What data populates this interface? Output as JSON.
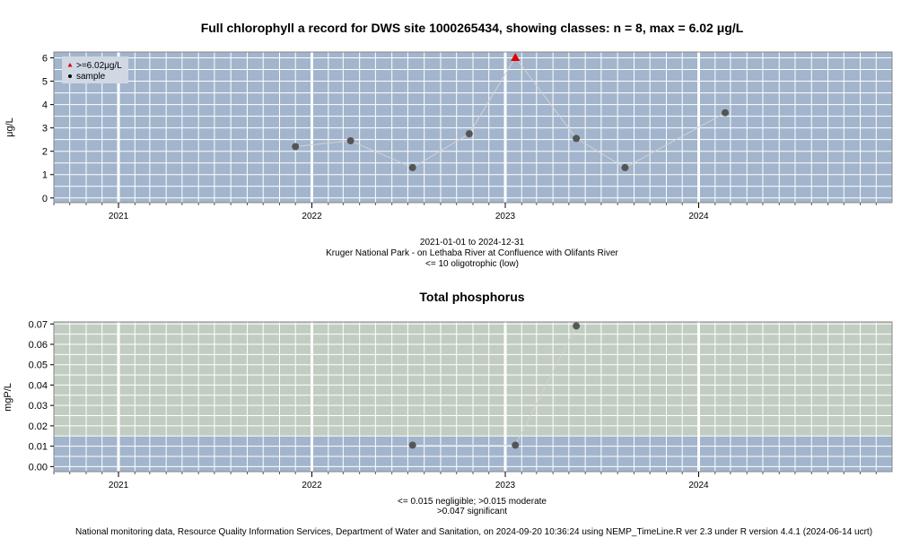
{
  "chart_data": [
    {
      "type": "scatter",
      "title": "Full chlorophyll a record for DWS site 1000265434, showing classes: n = 8, max = 6.02 μg/L",
      "ylabel": "μg/L",
      "xlabel": "",
      "xlim": [
        "2020-09-01",
        "2024-12-31"
      ],
      "ylim": [
        -0.2,
        6.25
      ],
      "yticks": [
        0,
        1,
        2,
        3,
        4,
        5,
        6
      ],
      "xticks": [
        {
          "label": "2021",
          "date": "2021-01-01"
        },
        {
          "label": "2022",
          "date": "2022-01-01"
        },
        {
          "label": "2023",
          "date": "2023-01-01"
        },
        {
          "label": "2024",
          "date": "2024-01-01"
        }
      ],
      "grid": true,
      "legend": [
        {
          "label": ">=6.02μg/L",
          "marker": "triangle",
          "color": "#dd0000"
        },
        {
          "label": "sample",
          "marker": "circle",
          "color": "#000000"
        }
      ],
      "series": [
        {
          "name": "sample",
          "points": [
            {
              "x": "2021-12-01",
              "y": 2.2
            },
            {
              "x": "2022-03-15",
              "y": 2.45
            },
            {
              "x": "2022-07-10",
              "y": 1.3
            },
            {
              "x": "2022-10-25",
              "y": 2.75
            },
            {
              "x": "2023-01-20",
              "y": 6.02,
              "flag": ">=6.02μg/L"
            },
            {
              "x": "2023-05-15",
              "y": 2.55
            },
            {
              "x": "2023-08-15",
              "y": 1.3
            },
            {
              "x": "2024-02-20",
              "y": 3.65
            }
          ]
        }
      ],
      "notes": [
        "2021-01-01 to 2024-12-31",
        "Kruger National Park - on Lethaba River at Confluence with Olifants River",
        "<= 10 oligotrophic (low)"
      ]
    },
    {
      "type": "scatter",
      "title": "Total phosphorus",
      "ylabel": "mgP/L",
      "xlabel": "",
      "xlim": [
        "2020-09-01",
        "2024-12-31"
      ],
      "ylim": [
        -0.0025,
        0.071
      ],
      "yticks": [
        "0.00",
        "0.01",
        "0.02",
        "0.03",
        "0.04",
        "0.05",
        "0.06",
        "0.07"
      ],
      "xticks": [
        {
          "label": "2021",
          "date": "2021-01-01"
        },
        {
          "label": "2022",
          "date": "2022-01-01"
        },
        {
          "label": "2023",
          "date": "2023-01-01"
        },
        {
          "label": "2024",
          "date": "2024-01-01"
        }
      ],
      "grid": true,
      "bands": [
        {
          "from": -0.0025,
          "to": 0.015,
          "label": "negligible",
          "color": "#a2b5cd"
        },
        {
          "from": 0.015,
          "to": 0.071,
          "label": "moderate",
          "color": "#c2cdc2"
        }
      ],
      "series": [
        {
          "name": "sample",
          "points": [
            {
              "x": "2022-07-10",
              "y": 0.0105
            },
            {
              "x": "2023-01-20",
              "y": 0.0105
            },
            {
              "x": "2023-05-15",
              "y": 0.069
            }
          ]
        }
      ],
      "notes": [
        "<= 0.015 negligible; >0.015 moderate",
        ">0.047 significant"
      ]
    }
  ],
  "footer": "National monitoring data, Resource Quality Information Services, Department of Water and Sanitation, on 2024-09-20 10:36:24 using NEMP_TimeLine.R ver 2.3 under R version 4.4.1 (2024-06-14 ucrt)",
  "colors": {
    "panel_top": "#a2b5cd",
    "grid": "#ffffff",
    "line": "#d3d3d3",
    "point": "#555555",
    "flag": "#dd0000"
  }
}
